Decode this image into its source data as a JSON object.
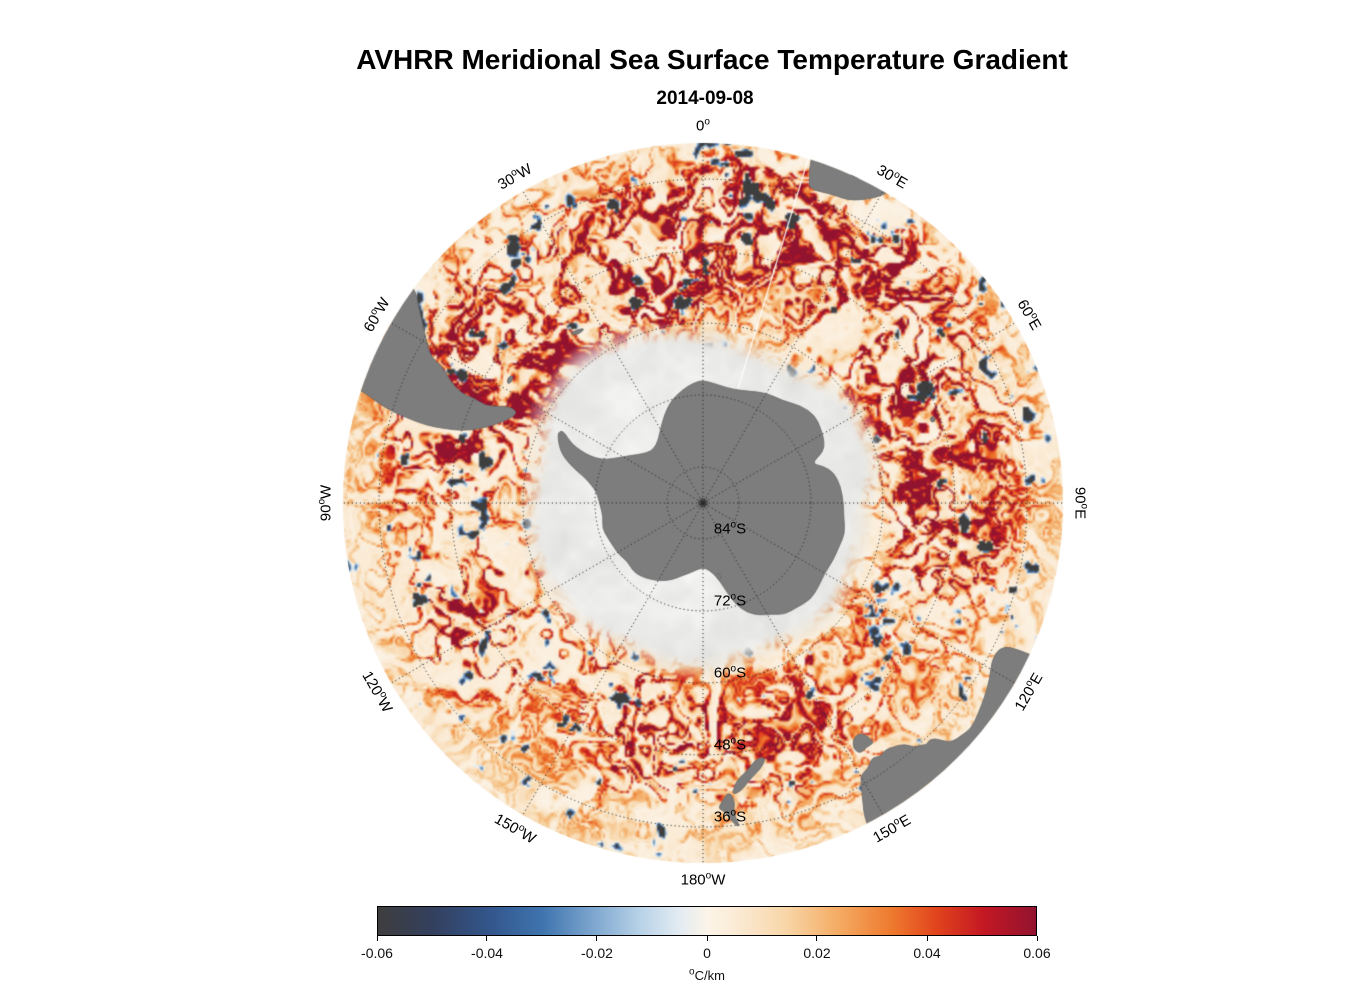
{
  "title": "AVHRR Meridional Sea Surface Temperature Gradient",
  "subtitle": "2014-09-08",
  "map": {
    "colors": {
      "land": "#7d7d7d",
      "land_edge": "#6b6b6b",
      "ice": "#e9e9e9",
      "graticule": "#2e2e2e",
      "seam": "#ffffff",
      "background": "#ffffff"
    },
    "meridian_labels": [
      {
        "text": "0",
        "sup": "o",
        "suffix": "",
        "lon": 0
      },
      {
        "text": "30",
        "sup": "o",
        "suffix": "E",
        "lon": 30
      },
      {
        "text": "60",
        "sup": "o",
        "suffix": "E",
        "lon": 60
      },
      {
        "text": "90",
        "sup": "o",
        "suffix": "E",
        "lon": 90
      },
      {
        "text": "120",
        "sup": "o",
        "suffix": "E",
        "lon": 120
      },
      {
        "text": "150",
        "sup": "o",
        "suffix": "E",
        "lon": 150
      },
      {
        "text": "180",
        "sup": "o",
        "suffix": "W",
        "lon": 180
      },
      {
        "text": "150",
        "sup": "o",
        "suffix": "W",
        "lon": -150
      },
      {
        "text": "120",
        "sup": "o",
        "suffix": "W",
        "lon": -120
      },
      {
        "text": "90",
        "sup": "o",
        "suffix": "W",
        "lon": -90
      },
      {
        "text": "60",
        "sup": "o",
        "suffix": "W",
        "lon": -60
      },
      {
        "text": "30",
        "sup": "o",
        "suffix": "W",
        "lon": -30
      }
    ],
    "parallel_labels": [
      {
        "text": "84",
        "sup": "o",
        "suffix": "S",
        "lat": 84
      },
      {
        "text": "72",
        "sup": "o",
        "suffix": "S",
        "lat": 72
      },
      {
        "text": "60",
        "sup": "o",
        "suffix": "S",
        "lat": 60
      },
      {
        "text": "48",
        "sup": "o",
        "suffix": "S",
        "lat": 48
      },
      {
        "text": "36",
        "sup": "o",
        "suffix": "S",
        "lat": 36
      }
    ]
  },
  "colorbar": {
    "ticks": [
      "-0.06",
      "-0.04",
      "-0.02",
      "0",
      "0.02",
      "0.04",
      "0.06"
    ],
    "unit_sup": "o",
    "unit_text": "C/km",
    "stops": [
      {
        "t": 0.0,
        "c": "#3e3e3e"
      },
      {
        "t": 0.08,
        "c": "#333f5c"
      },
      {
        "t": 0.17,
        "c": "#33568c"
      },
      {
        "t": 0.25,
        "c": "#3f74ae"
      },
      {
        "t": 0.33,
        "c": "#7fa8d0"
      },
      {
        "t": 0.4,
        "c": "#b9d3e8"
      },
      {
        "t": 0.46,
        "c": "#e4ecf2"
      },
      {
        "t": 0.5,
        "c": "#fbf4e8"
      },
      {
        "t": 0.54,
        "c": "#fbecd7"
      },
      {
        "t": 0.62,
        "c": "#f8d6a8"
      },
      {
        "t": 0.7,
        "c": "#f4ab63"
      },
      {
        "t": 0.78,
        "c": "#ee7a2e"
      },
      {
        "t": 0.85,
        "c": "#e1431d"
      },
      {
        "t": 0.92,
        "c": "#c41823"
      },
      {
        "t": 1.0,
        "c": "#92132f"
      }
    ]
  },
  "chart_data": {
    "type": "heatmap",
    "title": "AVHRR Meridional Sea Surface Temperature Gradient",
    "subtitle": "2014-09-08",
    "projection": "south-polar-azimuthal",
    "extent_lat_S": [
      30,
      90
    ],
    "meridian_gridlines_deg": [
      0,
      30,
      60,
      90,
      120,
      150,
      180,
      -150,
      -120,
      -90,
      -60,
      -30
    ],
    "parallel_gridlines_deg_S": [
      36,
      48,
      60,
      72,
      84
    ],
    "value_range": [
      -0.06,
      0.06
    ],
    "colorbar_ticks": [
      -0.06,
      -0.04,
      -0.02,
      0,
      0.02,
      0.04,
      0.06
    ],
    "colorbar_label": "°C/km",
    "legend_position": "bottom",
    "grid": "dotted",
    "description": "Meridional SST gradient field over the Southern Ocean: pale cream ocean background with intense positive (red) filament bands along the circumpolar current, scattered negative (blue) patches, gray land (Antarctica, South America, Africa, Australia, Tasmania, New Zealand) and a pale gray sea-ice zone around Antarctica."
  }
}
